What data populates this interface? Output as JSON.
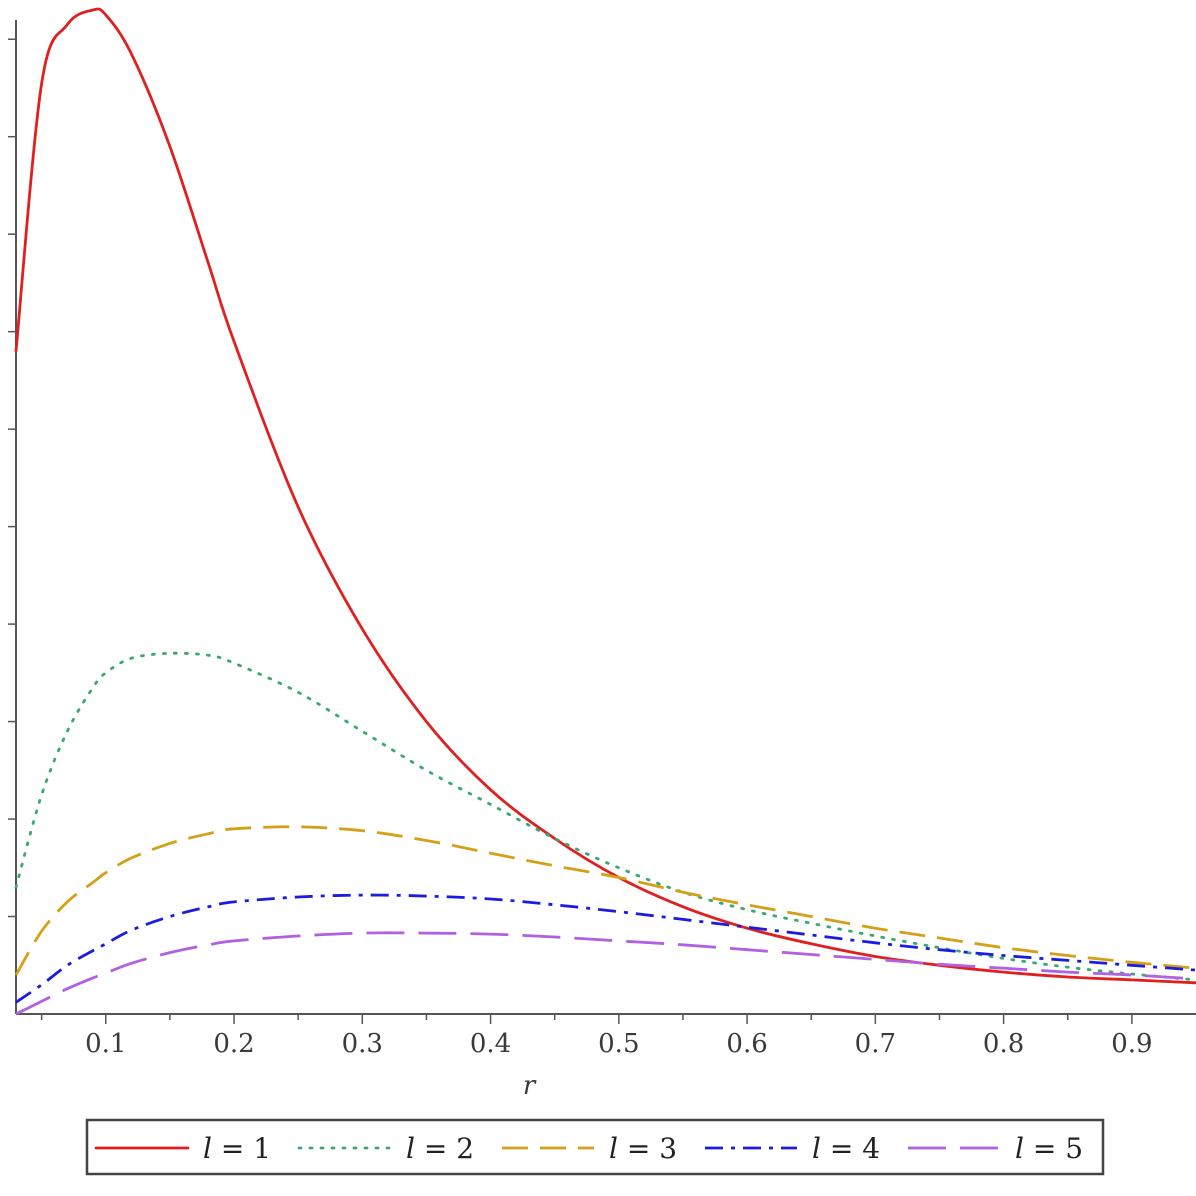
{
  "chart_data": {
    "type": "line",
    "title": "",
    "xlabel": "r",
    "ylabel": "",
    "xlim": [
      0.03,
      0.95
    ],
    "ylim": [
      0,
      1.03
    ],
    "x_ticks": [
      "0.1",
      "0.2",
      "0.3",
      "0.4",
      "0.5",
      "0.6",
      "0.7",
      "0.8",
      "0.9"
    ],
    "x_tick_values": [
      0.1,
      0.2,
      0.3,
      0.4,
      0.5,
      0.6,
      0.7,
      0.8,
      0.9
    ],
    "y_tick_values": [
      0.1,
      0.2,
      0.3,
      0.4,
      0.5,
      0.6,
      0.7,
      0.8,
      0.9,
      1.0
    ],
    "grid": false,
    "legend_position": "bottom",
    "x": [
      0.03,
      0.05,
      0.07,
      0.09,
      0.1,
      0.12,
      0.15,
      0.18,
      0.2,
      0.25,
      0.3,
      0.35,
      0.4,
      0.45,
      0.5,
      0.55,
      0.6,
      0.65,
      0.7,
      0.75,
      0.8,
      0.85,
      0.9,
      0.95
    ],
    "series": [
      {
        "name": "l = 1",
        "color": "#e02020",
        "dash": "solid",
        "values": [
          0.68,
          0.955,
          1.015,
          1.03,
          1.025,
          0.985,
          0.89,
          0.77,
          0.69,
          0.52,
          0.395,
          0.3,
          0.23,
          0.18,
          0.14,
          0.11,
          0.088,
          0.072,
          0.059,
          0.05,
          0.043,
          0.038,
          0.035,
          0.032
        ]
      },
      {
        "name": "l = 2",
        "color": "#3aa870",
        "dash": "dotted",
        "values": [
          0.13,
          0.225,
          0.29,
          0.335,
          0.35,
          0.365,
          0.37,
          0.368,
          0.36,
          0.33,
          0.29,
          0.25,
          0.215,
          0.18,
          0.15,
          0.125,
          0.107,
          0.093,
          0.08,
          0.068,
          0.057,
          0.048,
          0.041,
          0.035
        ]
      },
      {
        "name": "l = 3",
        "color": "#d4a017",
        "dash": "dashed",
        "values": [
          0.04,
          0.085,
          0.115,
          0.135,
          0.145,
          0.16,
          0.175,
          0.185,
          0.19,
          0.192,
          0.188,
          0.178,
          0.165,
          0.152,
          0.14,
          0.125,
          0.112,
          0.1,
          0.088,
          0.078,
          0.068,
          0.06,
          0.053,
          0.047
        ]
      },
      {
        "name": "l = 4",
        "color": "#1c1ce0",
        "dash": "dashdot",
        "values": [
          0.012,
          0.03,
          0.05,
          0.065,
          0.072,
          0.086,
          0.1,
          0.11,
          0.115,
          0.12,
          0.122,
          0.121,
          0.118,
          0.112,
          0.105,
          0.097,
          0.089,
          0.081,
          0.073,
          0.066,
          0.06,
          0.055,
          0.05,
          0.045
        ]
      },
      {
        "name": "l = 5",
        "color": "#b060e0",
        "dash": "longdash",
        "values": [
          0.0,
          0.013,
          0.026,
          0.037,
          0.042,
          0.052,
          0.063,
          0.071,
          0.075,
          0.08,
          0.083,
          0.083,
          0.082,
          0.079,
          0.075,
          0.071,
          0.066,
          0.061,
          0.056,
          0.051,
          0.047,
          0.043,
          0.04,
          0.036
        ]
      }
    ],
    "legend": {
      "var": "l",
      "items": [
        " = 1",
        " = 2",
        " = 3",
        " = 4",
        " = 5"
      ]
    }
  }
}
